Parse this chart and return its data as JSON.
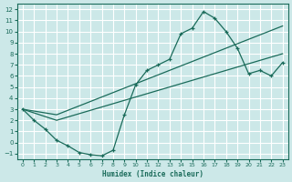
{
  "xlabel": "Humidex (Indice chaleur)",
  "bg_color": "#cce8e8",
  "grid_color": "#ffffff",
  "line_color": "#1a6b5a",
  "xlim": [
    -0.5,
    23.5
  ],
  "ylim": [
    -1.5,
    12.5
  ],
  "xticks": [
    0,
    1,
    2,
    3,
    4,
    5,
    6,
    7,
    8,
    9,
    10,
    11,
    12,
    13,
    14,
    15,
    16,
    17,
    18,
    19,
    20,
    21,
    22,
    23
  ],
  "yticks": [
    -1,
    0,
    1,
    2,
    3,
    4,
    5,
    6,
    7,
    8,
    9,
    10,
    11,
    12
  ],
  "line1_x": [
    0,
    1,
    2,
    3,
    4,
    5,
    6,
    7,
    8,
    9,
    10,
    11,
    12,
    13,
    14,
    15,
    16,
    17,
    18,
    19,
    20,
    21,
    22,
    23
  ],
  "line1_y": [
    3.0,
    2.0,
    1.2,
    0.2,
    -0.3,
    -0.9,
    -1.1,
    -1.2,
    -0.7,
    2.5,
    5.2,
    6.5,
    7.0,
    7.5,
    9.8,
    10.3,
    11.8,
    11.2,
    10.0,
    8.5,
    6.2,
    6.5,
    6.0,
    7.2
  ],
  "line2_x": [
    0,
    3,
    23
  ],
  "line2_y": [
    3.0,
    2.0,
    8.0
  ],
  "line3_x": [
    0,
    3,
    23
  ],
  "line3_y": [
    3.0,
    2.5,
    10.5
  ]
}
